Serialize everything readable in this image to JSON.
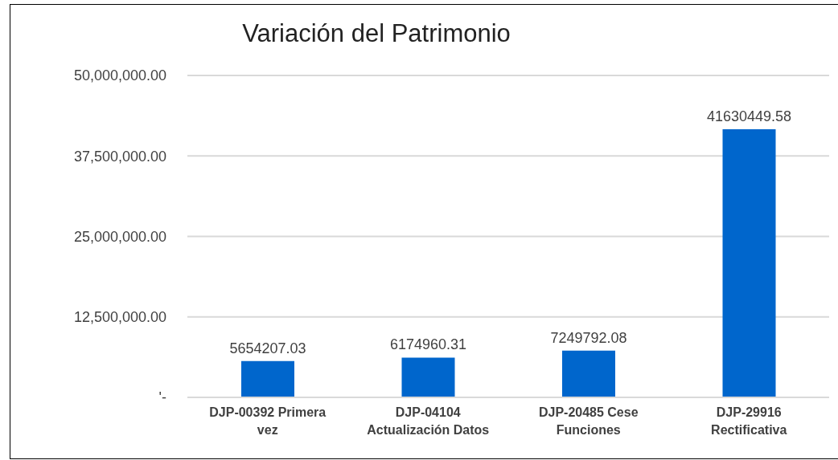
{
  "chart_data": {
    "type": "bar",
    "title": "Variación del Patrimonio",
    "categories": [
      "DJP-00392 Primera vez",
      "DJP-04104 Actualización Datos",
      "DJP-20485 Cese Funciones",
      "DJP-29916 Rectificativa"
    ],
    "values": [
      5654207.03,
      6174960.31,
      7249792.08,
      41630449.58
    ],
    "color": "#0066cc",
    "ylim": [
      0,
      50000000
    ],
    "yticks": [
      {
        "value": 0,
        "label": "'-"
      },
      {
        "value": 12500000,
        "label": "12,500,000.00"
      },
      {
        "value": 25000000,
        "label": "25,000,000.00"
      },
      {
        "value": 37500000,
        "label": "37,500,000.00"
      },
      {
        "value": 50000000,
        "label": "50,000,000.00"
      }
    ],
    "grid": "y",
    "data_labels": true
  }
}
